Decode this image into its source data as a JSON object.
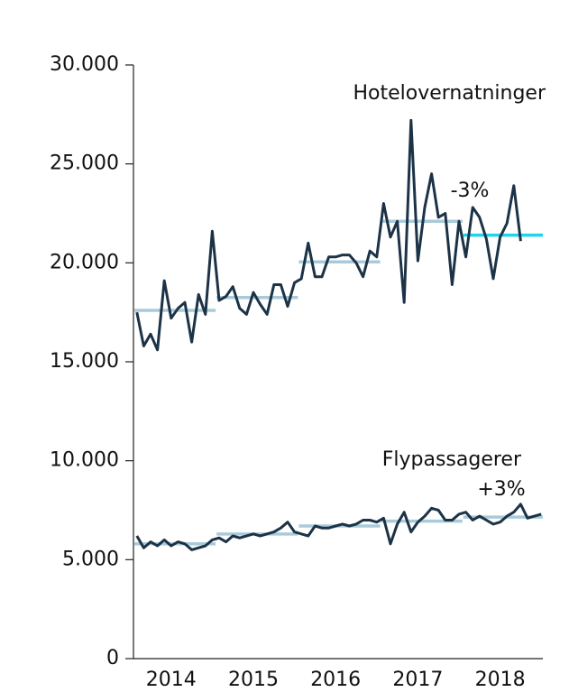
{
  "chart_data": {
    "type": "line",
    "categories": [
      null,
      null,
      null,
      null,
      null,
      "2014",
      null,
      null,
      null,
      null,
      null,
      null,
      null,
      null,
      null,
      null,
      null,
      "2015",
      null,
      null,
      null,
      null,
      null,
      null,
      null,
      null,
      null,
      null,
      null,
      "2016",
      null,
      null,
      null,
      null,
      null,
      null,
      null,
      null,
      null,
      null,
      null,
      "2017",
      null,
      null,
      null,
      null,
      null,
      null,
      null,
      null,
      null,
      null,
      null,
      "2018",
      null,
      null,
      null,
      null,
      null,
      null
    ],
    "series": [
      {
        "name": "Hotelovernatninger",
        "color": "#1c3347",
        "values": [
          17500,
          15800,
          16400,
          15600,
          19100,
          17200,
          17700,
          18000,
          16000,
          18400,
          17400,
          21600,
          18100,
          18300,
          18800,
          17700,
          17400,
          18500,
          17900,
          17400,
          18900,
          18900,
          17800,
          19000,
          19200,
          21000,
          19300,
          19300,
          20300,
          20300,
          20400,
          20400,
          20000,
          19300,
          20600,
          20300,
          23000,
          21300,
          22100,
          18000,
          27200,
          20100,
          22800,
          24500,
          22300,
          22500,
          18900,
          22100,
          20300,
          22800,
          22300,
          21200,
          19200,
          21300,
          22000,
          23900,
          21100,
          null,
          null,
          null
        ],
        "annual_means": [
          17600,
          18250,
          20050,
          22100,
          21400
        ],
        "mean_colors": [
          "#a9cbd9",
          "#a9cbd9",
          "#a9cbd9",
          "#a9cbd9",
          "#1fd3f0"
        ]
      },
      {
        "name": "Flypassagerer",
        "color": "#1c3347",
        "values": [
          6200,
          5600,
          5900,
          5700,
          6000,
          5700,
          5900,
          5800,
          5500,
          5600,
          5700,
          6000,
          6100,
          5900,
          6200,
          6100,
          6200,
          6300,
          6200,
          6300,
          6400,
          6600,
          6900,
          6400,
          6300,
          6200,
          6700,
          6600,
          6600,
          6700,
          6800,
          6700,
          6800,
          7000,
          7000,
          6900,
          7100,
          5800,
          6800,
          7400,
          6400,
          6900,
          7200,
          7600,
          7500,
          7000,
          7000,
          7300,
          7400,
          7000,
          7200,
          7000,
          6800,
          6900,
          7200,
          7400,
          7800,
          7100,
          7200,
          7300
        ],
        "annual_means": [
          5800,
          6300,
          6700,
          6950,
          7150
        ],
        "mean_colors": [
          "#a9cbd9",
          "#a9cbd9",
          "#a9cbd9",
          "#a9cbd9",
          "#a9cbd9"
        ]
      }
    ],
    "annotations": [
      "-3%",
      "+3%"
    ],
    "ylim": [
      0,
      30000
    ],
    "yticks": [
      0,
      {
        "value": 5000,
        "label": "5.000"
      },
      {
        "value": 10000,
        "label": "10.000"
      },
      {
        "value": 15000,
        "label": "15.000"
      },
      {
        "value": 20000,
        "label": "20.000"
      },
      {
        "value": 25000,
        "label": "25.000"
      },
      {
        "value": 30000,
        "label": "30.000"
      }
    ]
  }
}
